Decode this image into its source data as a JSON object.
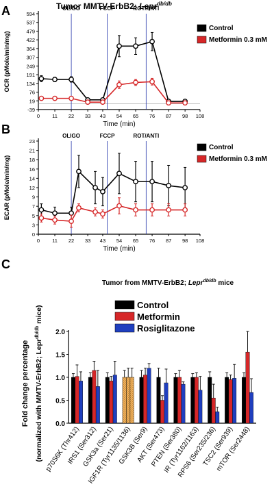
{
  "chart_data": [
    {
      "panel": "A",
      "type": "line",
      "title_prefix": "Tumor MMTV-ErbB2; ",
      "title_italic": "Lepr",
      "title_sup": "db/db",
      "ylabel": "OCR (pMole/min/mg)",
      "xlabel": "Time (min)",
      "ytick_labels": [
        "-39",
        "19",
        "76",
        "134",
        "191",
        "249",
        "307",
        "364",
        "422",
        "479",
        "537",
        "594"
      ],
      "xticks": [
        0,
        11,
        22,
        33,
        43,
        54,
        65,
        76,
        87,
        98,
        108
      ],
      "xlim": [
        0,
        108
      ],
      "x": [
        2,
        11,
        22,
        33,
        43,
        54,
        65,
        76,
        87,
        98
      ],
      "injections": [
        {
          "label": "OLIGO",
          "x": 22
        },
        {
          "label": "FCCP",
          "x": 46
        },
        {
          "label": "ROT/ANTI",
          "x": 72
        }
      ],
      "legend": [
        "Control",
        "Metformin 0.3 mM"
      ],
      "series": [
        {
          "name": "Control",
          "color": "#000000",
          "values": [
            165,
            160,
            160,
            25,
            25,
            380,
            380,
            410,
            15,
            15
          ],
          "errors": [
            20,
            15,
            18,
            10,
            10,
            70,
            55,
            60,
            8,
            8
          ]
        },
        {
          "name": "Metformin 0.3 mM",
          "color": "#d62728",
          "values": [
            35,
            35,
            35,
            10,
            10,
            125,
            140,
            145,
            5,
            5
          ],
          "errors": [
            8,
            6,
            6,
            5,
            5,
            25,
            20,
            22,
            4,
            4
          ]
        }
      ]
    },
    {
      "panel": "B",
      "type": "line",
      "ylabel": "ECAR (pMole/min/mg)",
      "xlabel": "Time (min)",
      "ytick_labels": [
        "0",
        "3",
        "5",
        "7",
        "9",
        "12",
        "14",
        "16",
        "18",
        "21",
        "23"
      ],
      "xticks": [
        0,
        11,
        22,
        33,
        43,
        54,
        65,
        76,
        87,
        98,
        108
      ],
      "xlim": [
        0,
        108
      ],
      "x": [
        2,
        11,
        22,
        27,
        38,
        43,
        54,
        65,
        76,
        87,
        98
      ],
      "injections": [
        {
          "label": "OLIGO",
          "x": 22
        },
        {
          "label": "FCCP",
          "x": 46
        },
        {
          "label": "ROT/ANTI",
          "x": 72
        }
      ],
      "legend": [
        "Control",
        "Metformin 0.3 mM"
      ],
      "series": [
        {
          "name": "Control",
          "color": "#000000",
          "values": [
            6,
            5.2,
            5.2,
            15.5,
            11.5,
            10.5,
            15,
            13,
            13,
            12,
            11.5
          ],
          "errors": [
            1.5,
            1.5,
            1.5,
            4,
            4,
            3.5,
            5,
            5,
            5,
            5,
            5
          ]
        },
        {
          "name": "Metformin 0.3 mM",
          "color": "#d62728",
          "values": [
            4,
            3.5,
            3.2,
            6.5,
            5.5,
            5,
            7,
            6,
            6,
            6,
            6
          ],
          "errors": [
            1,
            1,
            1.5,
            1,
            1,
            1,
            2,
            1.5,
            1.5,
            1.5,
            1.5
          ]
        }
      ]
    },
    {
      "panel": "C",
      "type": "bar",
      "title_prefix": "Tumor from MMTV-ErbB2; ",
      "title_italic": "Lepr",
      "title_sup": "db/db",
      "title_suffix": " mice",
      "ylabel_line1": "Fold change percentage",
      "ylabel_line2": "(normalized with MMTV-ErbB2; Lepr",
      "ylabel_sup": "db/db",
      "ylabel_suffix": " mice)",
      "ylim": [
        0,
        2.0
      ],
      "yticks": [
        "0.0",
        "0.5",
        "1.0",
        "1.5",
        "2.0"
      ],
      "categories": [
        "p70S6K (Thr412)",
        "IRS1 (Ser312)",
        "GSK3a (Ser21)",
        "IGF1R (Tyr1135/1136)",
        "GSK3B (Ser9)",
        "AKT (Ser473)",
        "PTEN (Ser380)",
        "IR (Tyr1162/1163)",
        "RPS6 (Ser235/236)",
        "TSC2 (Ser939)",
        "mTOR (Ser2448)"
      ],
      "legend": [
        "Control",
        "Metformin",
        "Rosiglitazone"
      ],
      "series": [
        {
          "name": "Control",
          "color": "#000000",
          "values": [
            1.0,
            1.0,
            1.0,
            1.0,
            1.0,
            1.0,
            1.0,
            1.0,
            1.0,
            1.0,
            1.0
          ],
          "errors": [
            0.08,
            0.1,
            0.1,
            0.15,
            0.15,
            0.2,
            0.08,
            0.08,
            0.12,
            0.1,
            0.1
          ]
        },
        {
          "name": "Metformin",
          "color": "#d62728",
          "values": [
            1.02,
            1.15,
            0.92,
            1.0,
            1.05,
            0.5,
            1.0,
            1.0,
            0.55,
            0.95,
            1.55
          ],
          "errors": [
            0.25,
            0.2,
            0.1,
            0.2,
            0.15,
            0.1,
            0.15,
            0.1,
            0.3,
            0.1,
            0.45
          ]
        },
        {
          "name": "Rosiglitazone",
          "color": "#1f3fbf",
          "values": [
            0.92,
            0.8,
            1.05,
            1.0,
            1.2,
            0.88,
            0.85,
            0.72,
            0.25,
            0.98,
            0.67
          ],
          "errors": [
            0.2,
            0.35,
            0.3,
            0.2,
            0.1,
            0.3,
            0.05,
            0.3,
            0.1,
            0.3,
            0.3
          ]
        }
      ],
      "highlight": {
        "category_index": 3,
        "color": "#e8a33c",
        "pattern": "hatched"
      }
    }
  ],
  "panel_labels": [
    "A",
    "B",
    "C"
  ]
}
